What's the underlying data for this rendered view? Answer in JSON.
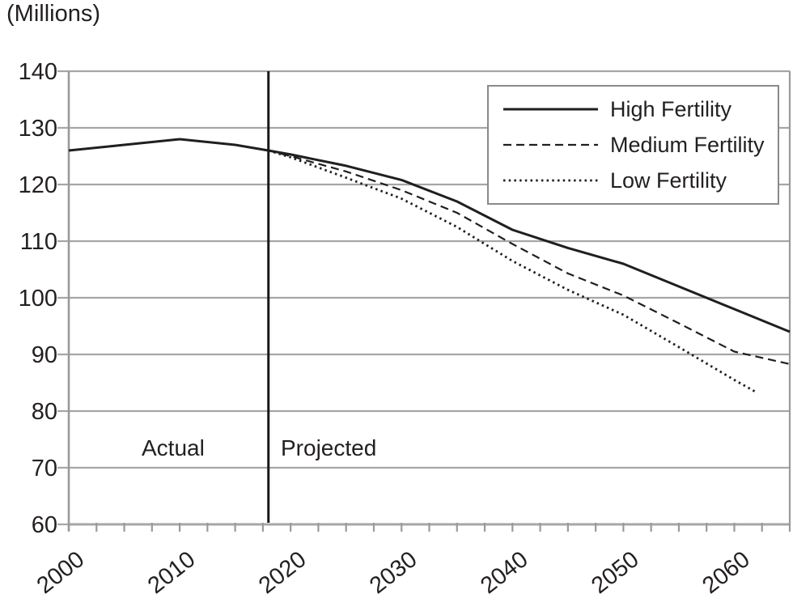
{
  "figure": {
    "units_label": "(Millions)",
    "annotations": {
      "actual": "Actual",
      "projected": "Projected"
    }
  },
  "chart_data": {
    "type": "line",
    "title": "(Millions)",
    "xlabel": "",
    "ylabel": "(Millions)",
    "xlim": [
      2000,
      2065
    ],
    "ylim": [
      60,
      140
    ],
    "y_ticks": [
      140,
      130,
      120,
      110,
      100,
      90,
      80,
      70,
      60
    ],
    "x_label_years": [
      2000,
      2010,
      2020,
      2030,
      2040,
      2050,
      2060
    ],
    "x_minor_tick_step_years": 2.5,
    "grid": true,
    "legend_position": "top-right",
    "divider_year": 2018,
    "series": [
      {
        "name": "Actual",
        "style": "solid",
        "dash": null,
        "width": 3,
        "in_legend": false,
        "points": [
          [
            2000,
            126
          ],
          [
            2005,
            127
          ],
          [
            2010,
            128
          ],
          [
            2015,
            127
          ],
          [
            2018,
            126
          ]
        ]
      },
      {
        "name": "High Fertility",
        "style": "solid",
        "dash": null,
        "width": 3,
        "in_legend": true,
        "points": [
          [
            2018,
            126
          ],
          [
            2020,
            125.3
          ],
          [
            2025,
            123.3
          ],
          [
            2030,
            120.8
          ],
          [
            2035,
            117
          ],
          [
            2040,
            112
          ],
          [
            2045,
            108.8
          ],
          [
            2050,
            106
          ],
          [
            2055,
            102
          ],
          [
            2060,
            98
          ],
          [
            2065,
            94
          ]
        ]
      },
      {
        "name": "Medium Fertility",
        "style": "dashed",
        "dash": "10 6",
        "width": 2.2,
        "in_legend": true,
        "points": [
          [
            2018,
            126
          ],
          [
            2020,
            125
          ],
          [
            2025,
            122.3
          ],
          [
            2030,
            119
          ],
          [
            2035,
            115
          ],
          [
            2040,
            109.5
          ],
          [
            2045,
            104.3
          ],
          [
            2050,
            100.4
          ],
          [
            2055,
            95.5
          ],
          [
            2060,
            90.5
          ],
          [
            2065,
            88.3
          ]
        ]
      },
      {
        "name": "Low Fertility",
        "style": "dotted",
        "dash": "2.5 4.2",
        "width": 2.8,
        "in_legend": true,
        "points": [
          [
            2018,
            126
          ],
          [
            2020,
            124.8
          ],
          [
            2025,
            121.2
          ],
          [
            2030,
            117.5
          ],
          [
            2035,
            112.5
          ],
          [
            2040,
            106.5
          ],
          [
            2045,
            101.4
          ],
          [
            2050,
            97
          ],
          [
            2055,
            91.3
          ],
          [
            2060,
            85.5
          ],
          [
            2062,
            83.3
          ]
        ]
      }
    ],
    "colors": {
      "line": "#1f1f1f",
      "grid": "#a6a6a6",
      "axis": "#9a9a9a",
      "divider": "#1a1a1a",
      "text": "#231f20",
      "legend_border": "#8a8a8a",
      "background": "#ffffff"
    }
  }
}
